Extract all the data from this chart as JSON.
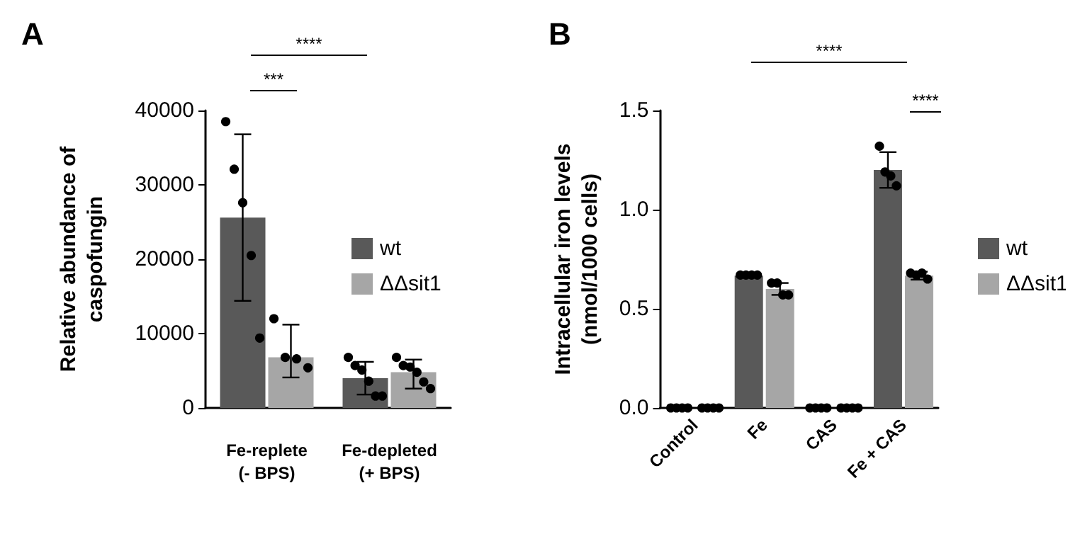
{
  "chart_data": [
    {
      "type": "bar",
      "title": "A",
      "ylabel": "Relative abundance of\ncaspofungin",
      "categories": [
        "Fe-replete\n(- BPS)",
        "Fe-depleted\n(+ BPS)"
      ],
      "ylim": [
        0,
        40000
      ],
      "yticks": [
        0,
        10000,
        20000,
        30000,
        40000
      ],
      "grid": false,
      "legend": "right",
      "annotations": [
        "****",
        "***"
      ],
      "series": [
        {
          "name": "wt",
          "color": "#595959",
          "values": [
            25600,
            4000
          ],
          "errors": [
            11200,
            2200
          ]
        },
        {
          "name": "ΔΔsit1",
          "color": "#a6a6a6",
          "values": [
            6800,
            4800
          ],
          "errors": [
            [
              4100,
              11200
            ],
            [
              2600,
              6500
            ]
          ]
        },
        {
          "type": "scatter",
          "color": "#000000",
          "x": [
            "Fe-replete\n(- BPS)",
            "Fe-replete\n(- BPS)",
            "Fe-replete\n(- BPS)",
            "Fe-replete\n(- BPS)",
            "Fe-replete\n(- BPS)",
            "Fe-depleted\n(+ BPS)",
            "Fe-depleted\n(+ BPS)",
            "Fe-depleted\n(+ BPS)",
            "Fe-depleted\n(+ BPS)",
            "Fe-depleted\n(+ BPS)",
            "Fe-depleted\n(+ BPS)"
          ],
          "values": [
            38500,
            32100,
            27600,
            20500,
            9400,
            6800,
            5700,
            5100,
            3600,
            1600,
            1600
          ]
        },
        {
          "type": "scatter",
          "color": "#000000",
          "x": [
            "Fe-replete\n(- BPS)",
            "Fe-replete\n(- BPS)",
            "Fe-replete\n(- BPS)",
            "Fe-replete\n(- BPS)",
            "Fe-depleted\n(+ BPS)",
            "Fe-depleted\n(+ BPS)",
            "Fe-depleted\n(+ BPS)",
            "Fe-depleted\n(+ BPS)",
            "Fe-depleted\n(+ BPS)",
            "Fe-depleted\n(+ BPS)"
          ],
          "values": [
            12000,
            6800,
            6600,
            5400,
            6800,
            5700,
            5500,
            4800,
            3500,
            2600
          ]
        }
      ]
    },
    {
      "type": "bar",
      "title": "B",
      "ylabel": "Intracellular iron levels\n(nmol/1000 cells)",
      "categories": [
        "Control",
        "Fe",
        "CAS",
        "Fe + CAS"
      ],
      "ylim": [
        0,
        1.5
      ],
      "yticks": [
        {
          "value": 0,
          "label": "0.0"
        },
        0.5,
        {
          "value": 1,
          "label": "1.0"
        },
        1.5
      ],
      "grid": false,
      "legend": "right",
      "annotations": [
        "****",
        "****"
      ],
      "series": [
        {
          "name": "wt",
          "color": "#595959",
          "values": [
            0,
            0.667,
            0,
            1.2
          ],
          "errors": [
            null,
            null,
            null,
            0.09
          ]
        },
        {
          "name": "ΔΔsit1",
          "color": "#a6a6a6",
          "values": [
            0,
            0.6,
            0,
            0.667
          ],
          "errors": [
            null,
            0.03,
            null,
            0.02
          ]
        },
        {
          "type": "scatter",
          "color": "#000000",
          "x": [
            "Control",
            "Control",
            "Control",
            "Control",
            "Fe",
            "Fe",
            "Fe",
            "Fe",
            "CAS",
            "CAS",
            "CAS",
            "CAS",
            "Fe + CAS",
            "Fe + CAS",
            "Fe + CAS",
            "Fe + CAS"
          ],
          "values": [
            0,
            0,
            0,
            0,
            0.67,
            0.67,
            0.67,
            0.67,
            0,
            0,
            0,
            0,
            1.32,
            1.19,
            1.17,
            1.12
          ]
        },
        {
          "type": "scatter",
          "color": "#000000",
          "x": [
            "Control",
            "Control",
            "Control",
            "Control",
            "Fe",
            "Fe",
            "Fe",
            "Fe",
            "CAS",
            "CAS",
            "CAS",
            "CAS",
            "Fe + CAS",
            "Fe + CAS",
            "Fe + CAS",
            "Fe + CAS"
          ],
          "values": [
            0,
            0,
            0,
            0,
            0.63,
            0.63,
            0.57,
            0.57,
            0,
            0,
            0,
            0,
            0.68,
            0.67,
            0.68,
            0.65
          ]
        }
      ]
    }
  ]
}
